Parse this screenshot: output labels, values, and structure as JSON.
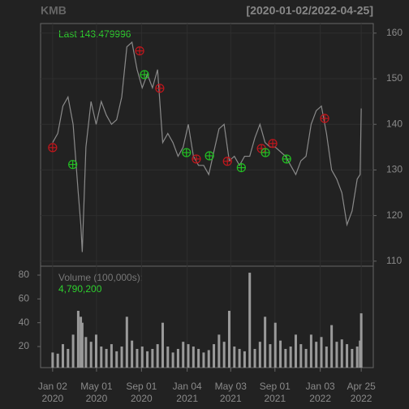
{
  "chart_data": [
    {
      "type": "line",
      "title": "KMB",
      "subtitle": "[2020-01-02/2022-04-25]",
      "last_label": "Last 143.479996",
      "x": [
        "2020-01-02",
        "2020-01-16",
        "2020-01-30",
        "2020-02-13",
        "2020-02-27",
        "2020-03-12",
        "2020-03-19",
        "2020-03-23",
        "2020-04-02",
        "2020-04-16",
        "2020-04-30",
        "2020-05-14",
        "2020-05-28",
        "2020-06-11",
        "2020-06-25",
        "2020-07-09",
        "2020-07-23",
        "2020-08-06",
        "2020-08-20",
        "2020-09-03",
        "2020-09-17",
        "2020-10-01",
        "2020-10-15",
        "2020-10-29",
        "2020-11-12",
        "2020-11-26",
        "2020-12-10",
        "2020-12-24",
        "2021-01-07",
        "2021-01-21",
        "2021-02-04",
        "2021-02-18",
        "2021-03-04",
        "2021-03-18",
        "2021-04-01",
        "2021-04-15",
        "2021-04-29",
        "2021-05-13",
        "2021-05-27",
        "2021-06-10",
        "2021-06-24",
        "2021-07-08",
        "2021-07-22",
        "2021-08-05",
        "2021-08-19",
        "2021-09-02",
        "2021-09-16",
        "2021-09-30",
        "2021-10-14",
        "2021-10-28",
        "2021-11-11",
        "2021-11-25",
        "2021-12-09",
        "2021-12-23",
        "2022-01-06",
        "2022-01-20",
        "2022-02-03",
        "2022-02-17",
        "2022-03-03",
        "2022-03-17",
        "2022-03-31",
        "2022-04-14",
        "2022-04-22",
        "2022-04-25"
      ],
      "series": [
        {
          "color": "#8a8a8a",
          "values": [
            136,
            138,
            144,
            146,
            140,
            125,
            118,
            112,
            135,
            145,
            140,
            145,
            142,
            140,
            141,
            146,
            157,
            158,
            152,
            148,
            151,
            148,
            152,
            136,
            138,
            136,
            133,
            135,
            140,
            133,
            131,
            131,
            129,
            134,
            139,
            140,
            132,
            133,
            131,
            133,
            133,
            137,
            140,
            136,
            135,
            135,
            134,
            133,
            131,
            129,
            132,
            133,
            140,
            143,
            144,
            138,
            130,
            128,
            125,
            118,
            121,
            128,
            129,
            143.479996
          ]
        }
      ],
      "markers": [
        {
          "color": "#c0161c",
          "x": [
            "2020-01-02",
            "2020-08-27",
            "2020-10-21",
            "2021-01-29",
            "2021-04-24",
            "2021-07-26",
            "2021-08-26",
            "2022-01-15"
          ],
          "values": [
            134.9,
            156.1,
            147.9,
            132.4,
            131.9,
            134.7,
            135.8,
            141.3
          ]
        },
        {
          "color": "#22c022",
          "x": [
            "2020-02-26",
            "2020-09-09",
            "2021-01-02",
            "2021-03-06",
            "2021-06-01",
            "2021-08-06",
            "2021-10-03"
          ],
          "values": [
            131.2,
            150.9,
            133.8,
            133.1,
            130.5,
            133.8,
            132.4
          ]
        }
      ],
      "xlim": [
        "2019-11-30",
        "2022-05-28"
      ],
      "ylim": [
        108.9,
        162.1
      ],
      "yticks": [
        110,
        120,
        130,
        140,
        150,
        160
      ],
      "grid": true
    },
    {
      "type": "bar",
      "label": "Volume (100,000s):",
      "last_label": {
        "value": 47.902,
        "label": "4,790,200"
      },
      "x": [
        "2020-01-02",
        "2020-01-16",
        "2020-01-30",
        "2020-02-13",
        "2020-02-27",
        "2020-03-12",
        "2020-03-19",
        "2020-03-23",
        "2020-04-02",
        "2020-04-16",
        "2020-04-30",
        "2020-05-14",
        "2020-05-28",
        "2020-06-11",
        "2020-06-25",
        "2020-07-09",
        "2020-07-23",
        "2020-08-06",
        "2020-08-20",
        "2020-09-03",
        "2020-09-17",
        "2020-10-01",
        "2020-10-15",
        "2020-10-29",
        "2020-11-12",
        "2020-11-26",
        "2020-12-10",
        "2020-12-24",
        "2021-01-07",
        "2021-01-21",
        "2021-02-04",
        "2021-02-18",
        "2021-03-04",
        "2021-03-18",
        "2021-04-01",
        "2021-04-15",
        "2021-04-29",
        "2021-05-13",
        "2021-05-27",
        "2021-06-10",
        "2021-06-24",
        "2021-07-08",
        "2021-07-22",
        "2021-08-05",
        "2021-08-19",
        "2021-09-02",
        "2021-09-16",
        "2021-09-30",
        "2021-10-14",
        "2021-10-28",
        "2021-11-11",
        "2021-11-25",
        "2021-12-09",
        "2021-12-23",
        "2022-01-06",
        "2022-01-20",
        "2022-02-03",
        "2022-02-17",
        "2022-03-03",
        "2022-03-17",
        "2022-03-31",
        "2022-04-14",
        "2022-04-22",
        "2022-04-25"
      ],
      "color": "#9a9a9a",
      "values": [
        15,
        14,
        22,
        18,
        30,
        50,
        45,
        40,
        28,
        24,
        30,
        20,
        18,
        22,
        16,
        20,
        45,
        25,
        18,
        20,
        16,
        18,
        22,
        40,
        20,
        15,
        18,
        24,
        22,
        20,
        18,
        15,
        17,
        22,
        30,
        24,
        50,
        20,
        18,
        16,
        82,
        18,
        24,
        45,
        22,
        40,
        25,
        18,
        20,
        30,
        22,
        18,
        30,
        24,
        28,
        20,
        38,
        24,
        26,
        22,
        18,
        20,
        25,
        47.902
      ],
      "xlim": [
        "2019-11-30",
        "2022-05-28"
      ],
      "ylim": [
        2.3,
        87.5
      ],
      "yticks": [
        20,
        40,
        60,
        80
      ],
      "xticks": [
        {
          "value": "2020-01-02",
          "label": "Jan 02\n2020"
        },
        {
          "value": "2020-05-01",
          "label": "May 01\n2020"
        },
        {
          "value": "2020-09-01",
          "label": "Sep 01\n2020"
        },
        {
          "value": "2021-01-04",
          "label": "Jan 04\n2021"
        },
        {
          "value": "2021-05-03",
          "label": "May 03\n2021"
        },
        {
          "value": "2021-09-01",
          "label": "Sep 01\n2021"
        },
        {
          "value": "2022-01-03",
          "label": "Jan 03\n2022"
        },
        {
          "value": "2022-04-25",
          "label": "Apr 25\n2022"
        }
      ]
    }
  ]
}
